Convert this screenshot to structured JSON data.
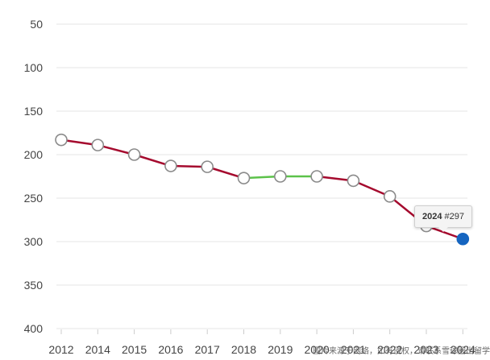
{
  "chart_data": {
    "type": "line",
    "y_axis": {
      "inverted": true,
      "ticks": [
        50,
        100,
        150,
        200,
        250,
        300,
        350,
        400
      ],
      "range": [
        400,
        50
      ]
    },
    "x_tick_labels": [
      "2012",
      "2014",
      "2015",
      "2016",
      "2017",
      "2018",
      "2019",
      "2020",
      "2021",
      "2022",
      "2023",
      "2024"
    ],
    "grid": true,
    "series": [
      {
        "x": [
          "2012",
          "2014",
          "2015",
          "2016",
          "2017",
          "2018",
          "2019",
          "2020",
          "2021",
          "2022",
          "2023",
          "2024"
        ],
        "y": [
          183,
          189,
          200,
          213,
          214,
          227,
          225,
          225,
          230,
          248,
          282,
          297
        ],
        "segment_colors": [
          "#a50a2e",
          "#a50a2e",
          "#a50a2e",
          "#a50a2e",
          "#a50a2e",
          "#5cc24a",
          "#5cc24a",
          "#a50a2e",
          "#a50a2e",
          "#a50a2e",
          "#a50a2e"
        ]
      }
    ],
    "highlight": {
      "year": "2024",
      "label": "#297",
      "color": "#1565c0"
    }
  },
  "watermark": "图片来源于网络，如有侵权，请联系雪球圈出留学删除"
}
